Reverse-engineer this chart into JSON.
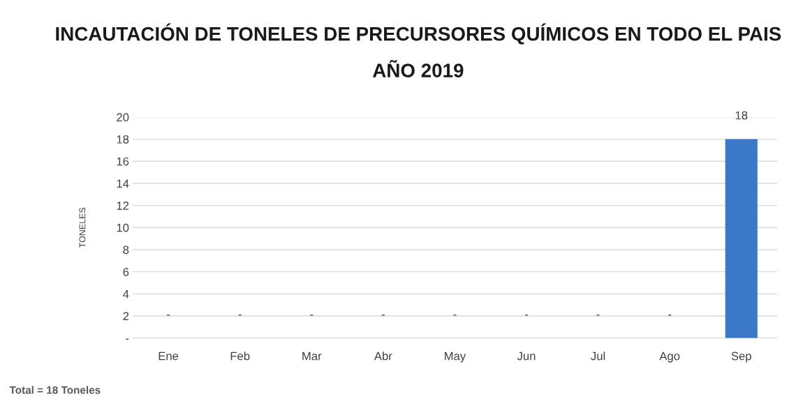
{
  "chart_data": {
    "type": "bar",
    "title": "INCAUTACIÓN DE TONELES DE PRECURSORES QUÍMICOS EN TODO EL PAIS",
    "subtitle": "AÑO 2019",
    "ylabel": "TONELES",
    "categories": [
      "Ene",
      "Feb",
      "Mar",
      "Abr",
      "May",
      "Jun",
      "Jul",
      "Ago",
      "Sep"
    ],
    "values": [
      0,
      0,
      0,
      0,
      0,
      0,
      0,
      0,
      18
    ],
    "value_labels": [
      "-",
      "-",
      "-",
      "-",
      "-",
      "-",
      "-",
      "-",
      "18"
    ],
    "color": "#3c78c8",
    "ylim": [
      0,
      20
    ],
    "yticks": [
      {
        "value": 0,
        "label": "-"
      },
      2,
      4,
      6,
      8,
      10,
      12,
      14,
      16,
      18,
      20
    ],
    "grid": "y",
    "annotations": [
      "Total = 18 Toneles"
    ]
  }
}
